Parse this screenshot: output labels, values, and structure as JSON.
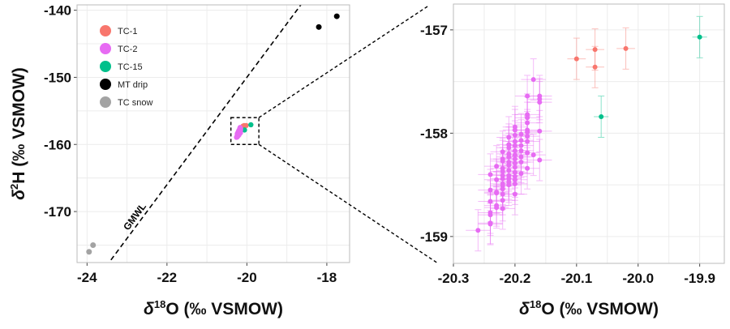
{
  "chart_data": [
    {
      "type": "scatter",
      "panel": "overview",
      "xlabel": {
        "delta": "δ",
        "sup": "18",
        "rest": "O (‰ VSMOW)"
      },
      "ylabel": {
        "delta": "δ",
        "sup": "2",
        "rest": "H (‰ VSMOW)"
      },
      "xlim": [
        -24.25,
        -17.43
      ],
      "ylim": [
        -177.6,
        -139.2
      ],
      "xticks": [
        -24,
        -22,
        -20,
        -18
      ],
      "yticks": [
        -140,
        -150,
        -160,
        -170
      ],
      "grid": true,
      "legend_position": "top-left",
      "legend": [
        {
          "name": "TC-1",
          "color": "#f8766d"
        },
        {
          "name": "TC-2",
          "color": "#e76bf3"
        },
        {
          "name": "TC-15",
          "color": "#00c08b"
        },
        {
          "name": "MT drip",
          "color": "#000000"
        },
        {
          "name": "TC snow",
          "color": "#a3a3a3"
        }
      ],
      "reference_line": {
        "label": "GMWL",
        "slope": 8,
        "intercept": 10,
        "style": "dashed"
      },
      "zoom_box": {
        "x": [
          -20.4,
          -19.7
        ],
        "y": [
          -160,
          -156
        ]
      },
      "series": [
        {
          "name": "MT drip",
          "points": [
            [
              -18.2,
              -142.5
            ],
            [
              -17.75,
              -140.9
            ]
          ]
        },
        {
          "name": "TC snow",
          "points": [
            [
              -23.95,
              -176.0
            ],
            [
              -23.85,
              -175.0
            ]
          ]
        }
      ]
    },
    {
      "type": "scatter",
      "panel": "zoom",
      "xlabel": {
        "delta": "δ",
        "sup": "18",
        "rest": "O (‰ VSMOW)"
      },
      "xlim": [
        -20.3,
        -19.86
      ],
      "ylim": [
        -159.26,
        -156.75
      ],
      "xticks": [
        -20.3,
        -20.2,
        -20.1,
        -20.0,
        -19.9
      ],
      "xtick_labels": [
        "-20.3",
        "-20.2",
        "-20.1",
        "-20.0",
        "-19.9"
      ],
      "yticks": [
        -157,
        -158,
        -159
      ],
      "grid": true,
      "error_bars": true,
      "series": [
        {
          "name": "TC-1",
          "color": "#f8766d",
          "x_err": 0.015,
          "y_err": 0.2,
          "points": [
            [
              -20.1,
              -157.28
            ],
            [
              -20.07,
              -157.19
            ],
            [
              -20.07,
              -157.36
            ],
            [
              -20.02,
              -157.18
            ]
          ]
        },
        {
          "name": "TC-15",
          "color": "#00c08b",
          "x_err": 0.012,
          "y_err": 0.2,
          "points": [
            [
              -19.9,
              -157.07
            ],
            [
              -20.06,
              -157.84
            ]
          ]
        },
        {
          "name": "TC-2",
          "color": "#e76bf3",
          "x_err": 0.02,
          "y_err": 0.2,
          "points": [
            [
              -20.26,
              -158.94
            ],
            [
              -20.24,
              -158.4
            ],
            [
              -20.24,
              -158.55
            ],
            [
              -20.24,
              -158.66
            ],
            [
              -20.24,
              -158.77
            ],
            [
              -20.24,
              -158.79
            ],
            [
              -20.24,
              -158.87
            ],
            [
              -20.24,
              -158.88
            ],
            [
              -20.23,
              -158.32
            ],
            [
              -20.23,
              -158.45
            ],
            [
              -20.23,
              -158.57
            ],
            [
              -20.23,
              -158.58
            ],
            [
              -20.23,
              -158.7
            ],
            [
              -20.23,
              -158.72
            ],
            [
              -20.22,
              -158.18
            ],
            [
              -20.22,
              -158.25
            ],
            [
              -20.22,
              -158.27
            ],
            [
              -20.22,
              -158.34
            ],
            [
              -20.22,
              -158.37
            ],
            [
              -20.22,
              -158.41
            ],
            [
              -20.22,
              -158.44
            ],
            [
              -20.22,
              -158.49
            ],
            [
              -20.22,
              -158.51
            ],
            [
              -20.22,
              -158.54
            ],
            [
              -20.22,
              -158.59
            ],
            [
              -20.22,
              -158.65
            ],
            [
              -20.22,
              -158.73
            ],
            [
              -20.21,
              -158.04
            ],
            [
              -20.21,
              -158.11
            ],
            [
              -20.21,
              -158.14
            ],
            [
              -20.21,
              -158.2
            ],
            [
              -20.21,
              -158.23
            ],
            [
              -20.21,
              -158.28
            ],
            [
              -20.21,
              -158.31
            ],
            [
              -20.21,
              -158.36
            ],
            [
              -20.21,
              -158.41
            ],
            [
              -20.21,
              -158.44
            ],
            [
              -20.21,
              -158.47
            ],
            [
              -20.21,
              -158.5
            ],
            [
              -20.2,
              -157.94
            ],
            [
              -20.2,
              -157.97
            ],
            [
              -20.2,
              -158.02
            ],
            [
              -20.2,
              -158.08
            ],
            [
              -20.2,
              -158.12
            ],
            [
              -20.2,
              -158.17
            ],
            [
              -20.2,
              -158.21
            ],
            [
              -20.2,
              -158.25
            ],
            [
              -20.2,
              -158.29
            ],
            [
              -20.2,
              -158.33
            ],
            [
              -20.2,
              -158.38
            ],
            [
              -20.2,
              -158.42
            ],
            [
              -20.2,
              -158.45
            ],
            [
              -20.2,
              -158.49
            ],
            [
              -20.2,
              -158.59
            ],
            [
              -20.19,
              -158.01
            ],
            [
              -20.19,
              -158.07
            ],
            [
              -20.19,
              -158.12
            ],
            [
              -20.19,
              -158.17
            ],
            [
              -20.19,
              -158.23
            ],
            [
              -20.19,
              -158.28
            ],
            [
              -20.19,
              -158.39
            ],
            [
              -20.18,
              -157.64
            ],
            [
              -20.18,
              -157.82
            ],
            [
              -20.18,
              -157.85
            ],
            [
              -20.18,
              -157.9
            ],
            [
              -20.18,
              -157.97
            ],
            [
              -20.18,
              -157.99
            ],
            [
              -20.18,
              -158.03
            ],
            [
              -20.18,
              -158.08
            ],
            [
              -20.18,
              -158.19
            ],
            [
              -20.18,
              -158.34
            ],
            [
              -20.17,
              -157.48
            ],
            [
              -20.17,
              -158.21
            ],
            [
              -20.16,
              -157.64
            ],
            [
              -20.16,
              -157.67
            ],
            [
              -20.16,
              -157.7
            ],
            [
              -20.16,
              -157.98
            ],
            [
              -20.16,
              -158.26
            ]
          ]
        }
      ]
    }
  ]
}
